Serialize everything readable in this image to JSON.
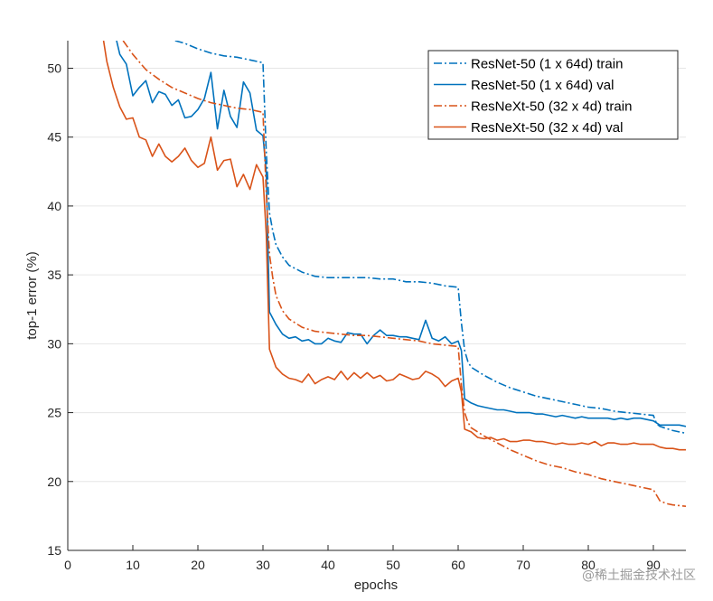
{
  "chart_data": {
    "type": "line",
    "xlabel": "epochs",
    "ylabel": "top-1 error (%)",
    "xlim": [
      0,
      95
    ],
    "ylim": [
      15,
      52
    ],
    "xticks": [
      0,
      10,
      20,
      30,
      40,
      50,
      60,
      70,
      80,
      90
    ],
    "yticks": [
      15,
      20,
      25,
      30,
      35,
      40,
      45,
      50
    ],
    "grid": "horizontal",
    "legend_position": "top-right",
    "series": [
      {
        "name": "ResNet-50 (1 x 64d) train",
        "style": "dashdot",
        "color": "#0072BD",
        "x": [
          16.5,
          18,
          20,
          22,
          24,
          26,
          28,
          30,
          30.5,
          31,
          31.5,
          32,
          33,
          34,
          36,
          38,
          40,
          42,
          44,
          46,
          48,
          50,
          52,
          54,
          56,
          58,
          60,
          60.5,
          61,
          61.5,
          62,
          64,
          66,
          68,
          70,
          72,
          74,
          76,
          78,
          80,
          82,
          84,
          86,
          88,
          90,
          90.5,
          91,
          93,
          95
        ],
        "y": [
          52,
          51.8,
          51.4,
          51.1,
          50.9,
          50.8,
          50.6,
          50.4,
          44,
          39.5,
          38.2,
          37.2,
          36.3,
          35.7,
          35.2,
          34.9,
          34.8,
          34.8,
          34.8,
          34.8,
          34.7,
          34.7,
          34.5,
          34.5,
          34.4,
          34.2,
          34.1,
          31.5,
          29.5,
          28.7,
          28.3,
          27.7,
          27.2,
          26.8,
          26.5,
          26.2,
          26.0,
          25.8,
          25.6,
          25.4,
          25.3,
          25.1,
          25.0,
          24.9,
          24.8,
          24.2,
          24.0,
          23.7,
          23.5
        ]
      },
      {
        "name": "ResNet-50 (1 x 64d) val",
        "style": "solid",
        "color": "#0072BD",
        "x": [
          7.5,
          8,
          9,
          10,
          11,
          12,
          13,
          14,
          15,
          16,
          17,
          18,
          19,
          20,
          21,
          22,
          23,
          24,
          25,
          26,
          27,
          28,
          29,
          30,
          30.5,
          31,
          32,
          33,
          34,
          35,
          36,
          37,
          38,
          39,
          40,
          41,
          42,
          43,
          44,
          45,
          46,
          47,
          48,
          49,
          50,
          51,
          52,
          53,
          54,
          55,
          56,
          57,
          58,
          59,
          60,
          60.5,
          61,
          62,
          63,
          64,
          65,
          66,
          67,
          68,
          69,
          70,
          71,
          72,
          73,
          74,
          75,
          76,
          77,
          78,
          79,
          80,
          81,
          82,
          83,
          84,
          85,
          86,
          87,
          88,
          89,
          90,
          91,
          92,
          93,
          94,
          95
        ],
        "y": [
          52,
          51,
          50.3,
          48,
          48.6,
          49.1,
          47.5,
          48.3,
          48.1,
          47.3,
          47.7,
          46.4,
          46.5,
          47,
          47.8,
          49.7,
          45.6,
          48.4,
          46.5,
          45.7,
          49,
          48.2,
          45.5,
          45.1,
          42.5,
          32.3,
          31.4,
          30.7,
          30.4,
          30.5,
          30.2,
          30.3,
          30.0,
          30.0,
          30.4,
          30.2,
          30.1,
          30.8,
          30.7,
          30.7,
          30.0,
          30.6,
          31.0,
          30.6,
          30.6,
          30.5,
          30.5,
          30.4,
          30.3,
          31.7,
          30.4,
          30.2,
          30.5,
          30.0,
          30.2,
          29.5,
          26.0,
          25.7,
          25.5,
          25.4,
          25.3,
          25.2,
          25.2,
          25.1,
          25.0,
          25.0,
          25.0,
          24.9,
          24.9,
          24.8,
          24.7,
          24.8,
          24.7,
          24.6,
          24.7,
          24.6,
          24.6,
          24.6,
          24.6,
          24.5,
          24.6,
          24.5,
          24.6,
          24.6,
          24.5,
          24.4,
          24.1,
          24.1,
          24.1,
          24.1,
          24.0
        ]
      },
      {
        "name": "ResNeXt-50 (32 x 4d) train",
        "style": "dashdot",
        "color": "#D95319",
        "x": [
          8.5,
          10,
          12,
          14,
          16,
          18,
          20,
          22,
          24,
          26,
          28,
          30,
          30.5,
          31,
          31.5,
          32,
          33,
          34,
          36,
          38,
          40,
          42,
          44,
          46,
          48,
          50,
          52,
          54,
          56,
          58,
          60,
          60.5,
          61,
          61.5,
          62,
          64,
          66,
          68,
          70,
          72,
          74,
          76,
          78,
          80,
          82,
          84,
          86,
          88,
          90,
          90.5,
          91,
          92,
          93,
          95
        ],
        "y": [
          52,
          51,
          49.9,
          49.2,
          48.6,
          48.2,
          47.8,
          47.5,
          47.3,
          47.1,
          47.0,
          46.8,
          41,
          36.5,
          34.8,
          33.5,
          32.4,
          31.8,
          31.2,
          30.9,
          30.8,
          30.7,
          30.6,
          30.6,
          30.5,
          30.4,
          30.3,
          30.2,
          30.0,
          29.9,
          29.8,
          27,
          25.0,
          24.3,
          23.9,
          23.3,
          22.8,
          22.3,
          21.9,
          21.5,
          21.2,
          21.0,
          20.7,
          20.5,
          20.2,
          20.0,
          19.8,
          19.6,
          19.4,
          19.0,
          18.6,
          18.4,
          18.3,
          18.2
        ]
      },
      {
        "name": "ResNeXt-50 (32 x 4d) val",
        "style": "solid",
        "color": "#D95319",
        "x": [
          5.5,
          6,
          7,
          8,
          9,
          10,
          11,
          12,
          13,
          14,
          15,
          16,
          17,
          18,
          19,
          20,
          21,
          22,
          23,
          24,
          25,
          26,
          27,
          28,
          29,
          30,
          30.5,
          31,
          32,
          33,
          34,
          35,
          36,
          37,
          38,
          39,
          40,
          41,
          42,
          43,
          44,
          45,
          46,
          47,
          48,
          49,
          50,
          51,
          52,
          53,
          54,
          55,
          56,
          57,
          58,
          59,
          60,
          60.5,
          61,
          62,
          63,
          64,
          65,
          66,
          67,
          68,
          69,
          70,
          71,
          72,
          73,
          74,
          75,
          76,
          77,
          78,
          79,
          80,
          81,
          82,
          83,
          84,
          85,
          86,
          87,
          88,
          89,
          90,
          91,
          92,
          93,
          94,
          95
        ],
        "y": [
          52,
          50.5,
          48.6,
          47.2,
          46.3,
          46.4,
          45.0,
          44.8,
          43.6,
          44.5,
          43.6,
          43.2,
          43.6,
          44.2,
          43.3,
          42.8,
          43.1,
          45.0,
          42.6,
          43.3,
          43.4,
          41.4,
          42.3,
          41.2,
          43.0,
          42.1,
          38,
          29.6,
          28.3,
          27.8,
          27.5,
          27.4,
          27.2,
          27.8,
          27.1,
          27.4,
          27.6,
          27.4,
          28.0,
          27.4,
          27.9,
          27.5,
          27.9,
          27.5,
          27.7,
          27.3,
          27.4,
          27.8,
          27.6,
          27.4,
          27.5,
          28.0,
          27.8,
          27.5,
          26.9,
          27.3,
          27.5,
          26.5,
          23.8,
          23.6,
          23.2,
          23.1,
          23.2,
          23.0,
          23.1,
          22.9,
          22.9,
          23.0,
          23.0,
          22.9,
          22.9,
          22.8,
          22.7,
          22.8,
          22.7,
          22.7,
          22.8,
          22.7,
          22.9,
          22.6,
          22.8,
          22.8,
          22.7,
          22.7,
          22.8,
          22.7,
          22.7,
          22.7,
          22.5,
          22.4,
          22.4,
          22.3,
          22.3
        ]
      }
    ]
  },
  "watermark": "@稀土掘金技术社区"
}
